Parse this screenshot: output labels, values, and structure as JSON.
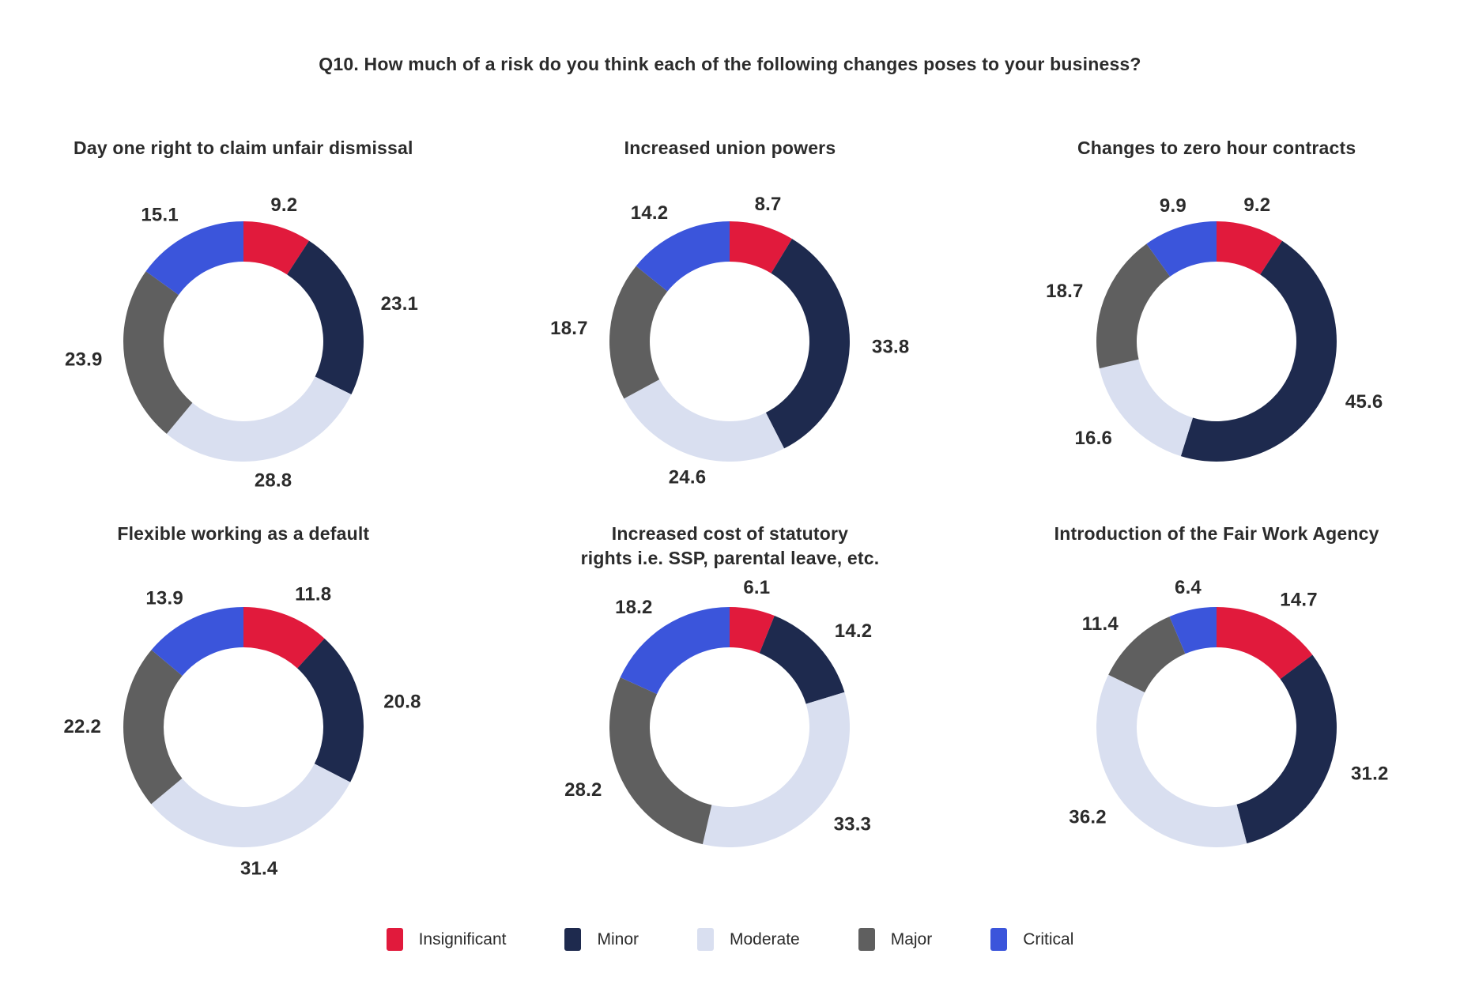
{
  "page_title": "Q10. How much of a risk do you think each of the following changes poses to your business?",
  "legend": {
    "items": [
      {
        "label": "Insignificant",
        "color": "#E11A3C"
      },
      {
        "label": "Minor",
        "color": "#1E2A4E"
      },
      {
        "label": "Moderate",
        "color": "#D9DFF0"
      },
      {
        "label": "Major",
        "color": "#5F5F5F"
      },
      {
        "label": "Critical",
        "color": "#3B55DB"
      }
    ]
  },
  "chart_data": {
    "type": "pie",
    "subtype": "donut",
    "start_angle": "top",
    "direction": "clockwise",
    "legend_position": "bottom",
    "categories": [
      "Insignificant",
      "Minor",
      "Moderate",
      "Major",
      "Critical"
    ],
    "colors": [
      "#E11A3C",
      "#1E2A4E",
      "#D9DFF0",
      "#5F5F5F",
      "#3B55DB"
    ],
    "charts": [
      {
        "title": "Day one right to claim unfair dismissal",
        "values": [
          9.2,
          23.1,
          28.8,
          23.9,
          15.1
        ]
      },
      {
        "title": "Increased union powers",
        "values": [
          8.7,
          33.8,
          24.6,
          18.7,
          14.2
        ]
      },
      {
        "title": "Changes to zero hour contracts",
        "values": [
          9.2,
          45.6,
          16.6,
          18.7,
          9.9
        ]
      },
      {
        "title": "Flexible working as a default",
        "values": [
          11.8,
          20.8,
          31.4,
          22.2,
          13.9
        ]
      },
      {
        "title": "Increased cost of statutory\nrights i.e. SSP, parental leave, etc.",
        "values": [
          6.1,
          14.2,
          33.3,
          28.2,
          18.2
        ]
      },
      {
        "title": "Introduction of the Fair Work Agency",
        "values": [
          14.7,
          31.2,
          36.2,
          11.4,
          6.4
        ]
      }
    ]
  }
}
